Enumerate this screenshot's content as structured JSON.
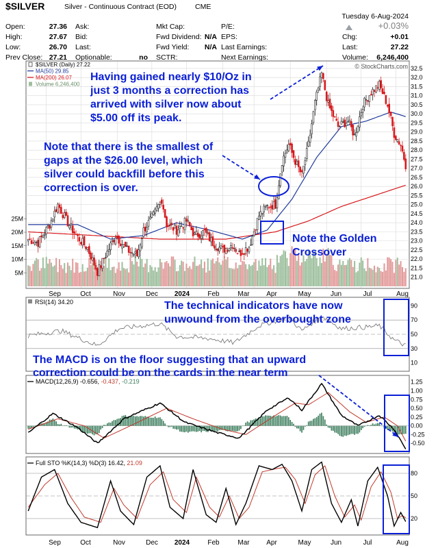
{
  "header": {
    "symbol": "$SILVER",
    "name": "Silver - Continuous Contract (EOD)",
    "exchange": "CME",
    "date": "Tuesday  6-Aug-2024",
    "pct_change": "+0.03%",
    "watermark": "© StockCharts.com",
    "quote_left": [
      {
        "label": "Open:",
        "value": "27.36"
      },
      {
        "label": "High:",
        "value": "27.67"
      },
      {
        "label": "Low:",
        "value": "26.70"
      },
      {
        "label": "Prev Close:",
        "value": "27.21"
      }
    ],
    "quote_mid": [
      {
        "label": "Ask:",
        "value": ""
      },
      {
        "label": "Bid:",
        "value": ""
      },
      {
        "label": "Last:",
        "value": ""
      },
      {
        "label": "Optionable:",
        "value": "no"
      }
    ],
    "quote_mid2": [
      {
        "label": "Mkt Cap:",
        "value": ""
      },
      {
        "label": "Fwd Dividend:",
        "value": "N/A"
      },
      {
        "label": "Fwd Yield:",
        "value": "N/A"
      },
      {
        "label": "SCTR:",
        "value": ""
      }
    ],
    "quote_mid3": [
      {
        "label": "P/E:",
        "value": ""
      },
      {
        "label": "EPS:",
        "value": ""
      },
      {
        "label": "Last Earnings:",
        "value": ""
      },
      {
        "label": "Next Earnings:",
        "value": ""
      }
    ],
    "quote_right": [
      {
        "label": "Chg:",
        "value": "+0.01"
      },
      {
        "label": "Last:",
        "value": "27.22"
      },
      {
        "label": "Volume:",
        "value": "6,246,400"
      }
    ]
  },
  "annotations": {
    "peak_note": [
      "Having gained nearly $10/Oz in",
      "just 3 months a correction has",
      "arrived with silver now about",
      "$5.00 off its peak."
    ],
    "gap_note": [
      "Note that there is the smallest of",
      "gaps at the $26.00 level, which",
      "silver could backfill before this",
      "correction is over."
    ],
    "golden_note": [
      "Note the Golden",
      "Crossover"
    ],
    "rsi_note": [
      "The technical indicators have now",
      "unwound from the overbought zone"
    ],
    "macd_note": [
      "The MACD is on the floor suggesting that an upward",
      "correction could be on the cards in the near term"
    ]
  },
  "colors": {
    "up": "#1f1f1f",
    "down": "#d7191c",
    "ma50": "#1f3a9c",
    "ma200": "#d7191c",
    "annotation": "#0a1fd6",
    "vol_up": "#9dbf9d",
    "vol_down": "#e39a9a"
  },
  "chart_data": [
    {
      "type": "candlestick",
      "title": "$SILVER (Daily) 27.22",
      "legend": [
        {
          "name": "$SILVER (Daily)",
          "value": "27.22"
        },
        {
          "name": "MA(50)",
          "value": "29.85"
        },
        {
          "name": "MA(200)",
          "value": "26.07"
        },
        {
          "name": "Volume",
          "value": "6,246,400"
        }
      ],
      "ylim": [
        20.5,
        32.8
      ],
      "y_ticks": [
        "32.5",
        "32.0",
        "31.5",
        "31.0",
        "30.5",
        "30.0",
        "29.5",
        "29.0",
        "28.5",
        "28.0",
        "27.5",
        "27.0",
        "26.5",
        "26.0",
        "25.5",
        "25.0",
        "24.5",
        "24.0",
        "23.5",
        "23.0",
        "22.5",
        "22.0",
        "21.5",
        "21.0"
      ],
      "volume_ticks": [
        "25M",
        "20M",
        "15M",
        "10M",
        "5M"
      ],
      "x_labels": [
        "Sep",
        "Oct",
        "Nov",
        "Dec",
        "2024",
        "Feb",
        "Mar",
        "Apr",
        "May",
        "Jun",
        "Jul",
        "Aug"
      ],
      "close_anchors": [
        {
          "day": 0,
          "close": 23.1
        },
        {
          "day": 6,
          "close": 22.9
        },
        {
          "day": 13,
          "close": 23.9
        },
        {
          "day": 18,
          "close": 25.0
        },
        {
          "day": 24,
          "close": 24.0
        },
        {
          "day": 30,
          "close": 23.2
        },
        {
          "day": 36,
          "close": 22.6
        },
        {
          "day": 42,
          "close": 21.3
        },
        {
          "day": 48,
          "close": 22.4
        },
        {
          "day": 53,
          "close": 23.3
        },
        {
          "day": 60,
          "close": 22.5
        },
        {
          "day": 66,
          "close": 22.2
        },
        {
          "day": 70,
          "close": 23.6
        },
        {
          "day": 76,
          "close": 24.4
        },
        {
          "day": 81,
          "close": 25.3
        },
        {
          "day": 84,
          "close": 23.9
        },
        {
          "day": 90,
          "close": 23.6
        },
        {
          "day": 96,
          "close": 24.1
        },
        {
          "day": 101,
          "close": 23.3
        },
        {
          "day": 107,
          "close": 23.5
        },
        {
          "day": 112,
          "close": 22.9
        },
        {
          "day": 118,
          "close": 22.5
        },
        {
          "day": 124,
          "close": 22.8
        },
        {
          "day": 128,
          "close": 22.3
        },
        {
          "day": 134,
          "close": 22.7
        },
        {
          "day": 140,
          "close": 24.4
        },
        {
          "day": 145,
          "close": 24.9
        },
        {
          "day": 150,
          "close": 25.0
        },
        {
          "day": 154,
          "close": 27.4
        },
        {
          "day": 158,
          "close": 28.3
        },
        {
          "day": 162,
          "close": 27.4
        },
        {
          "day": 166,
          "close": 26.6
        },
        {
          "day": 170,
          "close": 28.3
        },
        {
          "day": 174,
          "close": 30.6
        },
        {
          "day": 178,
          "close": 32.2
        },
        {
          "day": 182,
          "close": 30.5
        },
        {
          "day": 188,
          "close": 29.3
        },
        {
          "day": 194,
          "close": 29.6
        },
        {
          "day": 198,
          "close": 28.8
        },
        {
          "day": 203,
          "close": 30.5
        },
        {
          "day": 208,
          "close": 31.2
        },
        {
          "day": 213,
          "close": 31.6
        },
        {
          "day": 218,
          "close": 30.5
        },
        {
          "day": 222,
          "close": 28.9
        },
        {
          "day": 226,
          "close": 28.3
        },
        {
          "day": 229,
          "close": 27.2
        }
      ],
      "ma50_anchors": [
        {
          "day": 0,
          "close": 23.9
        },
        {
          "day": 30,
          "close": 23.9
        },
        {
          "day": 50,
          "close": 23.1
        },
        {
          "day": 70,
          "close": 23.3
        },
        {
          "day": 90,
          "close": 24.0
        },
        {
          "day": 110,
          "close": 23.6
        },
        {
          "day": 130,
          "close": 23.1
        },
        {
          "day": 145,
          "close": 23.6
        },
        {
          "day": 160,
          "close": 25.3
        },
        {
          "day": 175,
          "close": 27.6
        },
        {
          "day": 190,
          "close": 29.3
        },
        {
          "day": 205,
          "close": 29.6
        },
        {
          "day": 220,
          "close": 30.1
        },
        {
          "day": 229,
          "close": 29.85
        }
      ],
      "ma200_anchors": [
        {
          "day": 0,
          "close": 23.5
        },
        {
          "day": 40,
          "close": 23.3
        },
        {
          "day": 80,
          "close": 23.1
        },
        {
          "day": 120,
          "close": 23.1
        },
        {
          "day": 150,
          "close": 23.5
        },
        {
          "day": 170,
          "close": 24.1
        },
        {
          "day": 190,
          "close": 24.9
        },
        {
          "day": 210,
          "close": 25.5
        },
        {
          "day": 229,
          "close": 26.07
        }
      ]
    },
    {
      "type": "line",
      "title": "RSI(14) 34.20",
      "series_name": "RSI(14)",
      "last_value": "34.20",
      "ylim": [
        0,
        100
      ],
      "y_ticks": [
        "90",
        "70",
        "50",
        "30",
        "10"
      ],
      "anchors": [
        {
          "day": 0,
          "value": 48
        },
        {
          "day": 20,
          "value": 55
        },
        {
          "day": 42,
          "value": 34
        },
        {
          "day": 55,
          "value": 58
        },
        {
          "day": 80,
          "value": 65
        },
        {
          "day": 90,
          "value": 47
        },
        {
          "day": 110,
          "value": 44
        },
        {
          "day": 125,
          "value": 38
        },
        {
          "day": 140,
          "value": 62
        },
        {
          "day": 158,
          "value": 74
        },
        {
          "day": 166,
          "value": 55
        },
        {
          "day": 178,
          "value": 76
        },
        {
          "day": 190,
          "value": 58
        },
        {
          "day": 205,
          "value": 60
        },
        {
          "day": 213,
          "value": 62
        },
        {
          "day": 222,
          "value": 42
        },
        {
          "day": 229,
          "value": 34
        }
      ]
    },
    {
      "type": "line",
      "title": "MACD(12,26,9) -0.656, -0.437, -0.219",
      "series": [
        {
          "name": "MACD(12,26,9)",
          "last": "-0.656"
        },
        {
          "name": "Signal",
          "last": "-0.437"
        },
        {
          "name": "Histogram",
          "last": "-0.219"
        }
      ],
      "ylim": [
        -0.75,
        1.4
      ],
      "y_ticks": [
        "1.25",
        "1.00",
        "0.75",
        "0.50",
        "0.25",
        "0.00",
        "-0.25",
        "-0.50"
      ],
      "macd_anchors": [
        {
          "day": 0,
          "value": -0.2
        },
        {
          "day": 15,
          "value": 0.35
        },
        {
          "day": 30,
          "value": -0.05
        },
        {
          "day": 42,
          "value": -0.5
        },
        {
          "day": 58,
          "value": 0.2
        },
        {
          "day": 80,
          "value": 0.65
        },
        {
          "day": 95,
          "value": 0.1
        },
        {
          "day": 115,
          "value": -0.2
        },
        {
          "day": 128,
          "value": -0.35
        },
        {
          "day": 145,
          "value": 0.45
        },
        {
          "day": 158,
          "value": 0.8
        },
        {
          "day": 166,
          "value": 0.45
        },
        {
          "day": 178,
          "value": 1.2
        },
        {
          "day": 190,
          "value": 0.3
        },
        {
          "day": 200,
          "value": 0.0
        },
        {
          "day": 213,
          "value": 0.3
        },
        {
          "day": 222,
          "value": -0.1
        },
        {
          "day": 229,
          "value": -0.656
        }
      ],
      "signal_anchors": [
        {
          "day": 0,
          "value": -0.1
        },
        {
          "day": 18,
          "value": 0.2
        },
        {
          "day": 34,
          "value": 0.0
        },
        {
          "day": 46,
          "value": -0.35
        },
        {
          "day": 62,
          "value": 0.0
        },
        {
          "day": 84,
          "value": 0.5
        },
        {
          "day": 100,
          "value": 0.2
        },
        {
          "day": 118,
          "value": -0.1
        },
        {
          "day": 132,
          "value": -0.25
        },
        {
          "day": 150,
          "value": 0.3
        },
        {
          "day": 162,
          "value": 0.65
        },
        {
          "day": 170,
          "value": 0.6
        },
        {
          "day": 182,
          "value": 0.95
        },
        {
          "day": 195,
          "value": 0.4
        },
        {
          "day": 205,
          "value": 0.1
        },
        {
          "day": 216,
          "value": 0.25
        },
        {
          "day": 224,
          "value": 0.0
        },
        {
          "day": 229,
          "value": -0.437
        }
      ]
    },
    {
      "type": "line",
      "title": "Full STO %K(14,3) %D(3) 16.42, 21.09",
      "series": [
        {
          "name": "%K(14,3)",
          "last": "16.42"
        },
        {
          "name": "%D(3)",
          "last": "21.09"
        }
      ],
      "ylim": [
        0,
        100
      ],
      "y_ticks": [
        "80",
        "50",
        "20"
      ],
      "k_anchors": [
        {
          "day": 0,
          "value": 30
        },
        {
          "day": 8,
          "value": 75
        },
        {
          "day": 16,
          "value": 85
        },
        {
          "day": 24,
          "value": 40
        },
        {
          "day": 32,
          "value": 15
        },
        {
          "day": 42,
          "value": 8
        },
        {
          "day": 50,
          "value": 70
        },
        {
          "day": 56,
          "value": 30
        },
        {
          "day": 64,
          "value": 12
        },
        {
          "day": 72,
          "value": 75
        },
        {
          "day": 80,
          "value": 90
        },
        {
          "day": 86,
          "value": 35
        },
        {
          "day": 94,
          "value": 20
        },
        {
          "day": 100,
          "value": 85
        },
        {
          "day": 108,
          "value": 25
        },
        {
          "day": 114,
          "value": 15
        },
        {
          "day": 120,
          "value": 60
        },
        {
          "day": 126,
          "value": 12
        },
        {
          "day": 132,
          "value": 40
        },
        {
          "day": 140,
          "value": 90
        },
        {
          "day": 148,
          "value": 85
        },
        {
          "day": 154,
          "value": 92
        },
        {
          "day": 160,
          "value": 70
        },
        {
          "day": 166,
          "value": 30
        },
        {
          "day": 172,
          "value": 85
        },
        {
          "day": 178,
          "value": 95
        },
        {
          "day": 184,
          "value": 40
        },
        {
          "day": 190,
          "value": 15
        },
        {
          "day": 196,
          "value": 45
        },
        {
          "day": 200,
          "value": 10
        },
        {
          "day": 206,
          "value": 70
        },
        {
          "day": 212,
          "value": 88
        },
        {
          "day": 218,
          "value": 50
        },
        {
          "day": 222,
          "value": 10
        },
        {
          "day": 226,
          "value": 28
        },
        {
          "day": 229,
          "value": 16
        }
      ],
      "d_anchors": [
        {
          "day": 0,
          "value": 35
        },
        {
          "day": 10,
          "value": 65
        },
        {
          "day": 18,
          "value": 80
        },
        {
          "day": 26,
          "value": 48
        },
        {
          "day": 34,
          "value": 22
        },
        {
          "day": 44,
          "value": 15
        },
        {
          "day": 52,
          "value": 60
        },
        {
          "day": 58,
          "value": 38
        },
        {
          "day": 66,
          "value": 20
        },
        {
          "day": 74,
          "value": 65
        },
        {
          "day": 82,
          "value": 82
        },
        {
          "day": 88,
          "value": 45
        },
        {
          "day": 96,
          "value": 28
        },
        {
          "day": 102,
          "value": 75
        },
        {
          "day": 110,
          "value": 35
        },
        {
          "day": 116,
          "value": 22
        },
        {
          "day": 122,
          "value": 50
        },
        {
          "day": 128,
          "value": 20
        },
        {
          "day": 134,
          "value": 35
        },
        {
          "day": 142,
          "value": 82
        },
        {
          "day": 150,
          "value": 86
        },
        {
          "day": 156,
          "value": 88
        },
        {
          "day": 162,
          "value": 72
        },
        {
          "day": 168,
          "value": 40
        },
        {
          "day": 174,
          "value": 78
        },
        {
          "day": 180,
          "value": 90
        },
        {
          "day": 186,
          "value": 50
        },
        {
          "day": 192,
          "value": 22
        },
        {
          "day": 198,
          "value": 38
        },
        {
          "day": 202,
          "value": 18
        },
        {
          "day": 208,
          "value": 62
        },
        {
          "day": 214,
          "value": 82
        },
        {
          "day": 220,
          "value": 55
        },
        {
          "day": 224,
          "value": 20
        },
        {
          "day": 227,
          "value": 24
        },
        {
          "day": 229,
          "value": 21
        }
      ]
    }
  ]
}
